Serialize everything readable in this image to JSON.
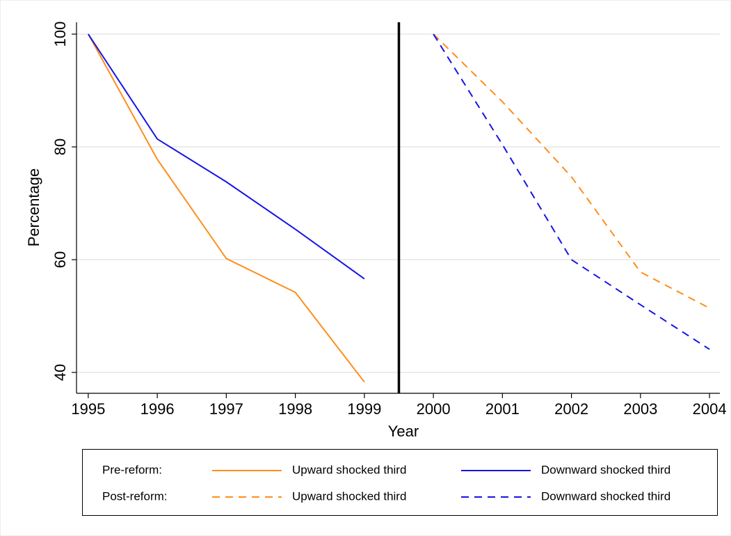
{
  "chart_data": {
    "type": "line",
    "x_label": "Year",
    "y_label": "Percentage",
    "xlim": [
      1994.83,
      2004.15
    ],
    "ylim": [
      36.3,
      102.1
    ],
    "xticks": [
      1995,
      1996,
      1997,
      1998,
      1999,
      2000,
      2001,
      2002,
      2003,
      2004
    ],
    "yticks": [
      40,
      60,
      80,
      100
    ],
    "grid": true,
    "reference_line_x": 1999.5,
    "groups": [
      {
        "name": "Pre-reform:",
        "dashed": false,
        "series": [
          {
            "name": "Upward shocked third",
            "color": "#ff8c1a",
            "x": [
              1995,
              1996,
              1997,
              1998,
              1999
            ],
            "values": [
              100,
              77.8,
              60.2,
              54.2,
              38.3
            ]
          },
          {
            "name": "Downward shocked third",
            "color": "#1414e6",
            "x": [
              1995,
              1996,
              1997,
              1998,
              1999
            ],
            "values": [
              100,
              81.4,
              73.8,
              65.4,
              56.6
            ]
          }
        ]
      },
      {
        "name": "Post-reform:",
        "dashed": true,
        "series": [
          {
            "name": "Upward shocked third",
            "color": "#ff8c1a",
            "x": [
              2000,
              2001,
              2002,
              2003,
              2004
            ],
            "values": [
              100,
              88,
              74.7,
              57.8,
              51.4
            ]
          },
          {
            "name": "Downward shocked third",
            "color": "#1414e6",
            "x": [
              2000,
              2001,
              2002,
              2003,
              2004
            ],
            "values": [
              100,
              80.4,
              60,
              52,
              44.1
            ]
          }
        ]
      }
    ]
  }
}
